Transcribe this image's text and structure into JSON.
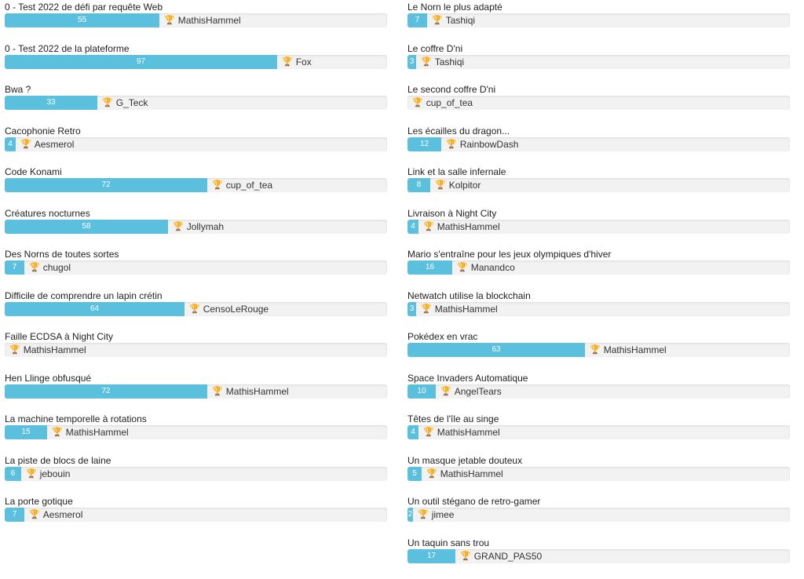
{
  "trophy_icon": "trophy-icon",
  "accent_color": "#5bc0de",
  "left_column": [
    {
      "title": "0 - Test 2022 de défi par requête Web",
      "value": 55,
      "value_label": "55",
      "winner": "MathisHammel"
    },
    {
      "title": "0 - Test 2022 de la plateforme",
      "value": 97,
      "value_label": "97",
      "winner": "Fox"
    },
    {
      "title": "Bwa ?",
      "value": 33,
      "value_label": "33",
      "winner": "G_Teck"
    },
    {
      "title": "Cacophonie Retro",
      "value": 4,
      "value_label": "4",
      "winner": "Aesmerol"
    },
    {
      "title": "Code Konami",
      "value": 72,
      "value_label": "72",
      "winner": "cup_of_tea"
    },
    {
      "title": "Créatures nocturnes",
      "value": 58,
      "value_label": "58",
      "winner": "Jollymah"
    },
    {
      "title": "Des Norns de toutes sortes",
      "value": 7,
      "value_label": "7",
      "winner": "chugol"
    },
    {
      "title": "Difficile de comprendre un lapin crétin",
      "value": 64,
      "value_label": "64",
      "winner": "CensoLeRouge"
    },
    {
      "title": "Faille ECDSA à Night City",
      "value": 0,
      "value_label": "",
      "winner": "MathisHammel"
    },
    {
      "title": "Hen Llinge obfusqué",
      "value": 72,
      "value_label": "72",
      "winner": "MathisHammel"
    },
    {
      "title": "La machine temporelle à rotations",
      "value": 15,
      "value_label": "15",
      "winner": "MathisHammel"
    },
    {
      "title": "La piste de blocs de laine",
      "value": 6,
      "value_label": "6",
      "winner": "jebouin"
    },
    {
      "title": "La porte gotique",
      "value": 7,
      "value_label": "7",
      "winner": "Aesmerol"
    }
  ],
  "right_column": [
    {
      "title": "Le Norn le plus adapté",
      "value": 7,
      "value_label": "7",
      "winner": "Tashiqi"
    },
    {
      "title": "Le coffre D'ni",
      "value": 3,
      "value_label": "3",
      "winner": "Tashiqi"
    },
    {
      "title": "Le second coffre D'ni",
      "value": 0,
      "value_label": "",
      "winner": "cup_of_tea"
    },
    {
      "title": "Les écailles du dragon...",
      "value": 12,
      "value_label": "12",
      "winner": "RainbowDash"
    },
    {
      "title": "Link et la salle infernale",
      "value": 8,
      "value_label": "8",
      "winner": "Kolpitor"
    },
    {
      "title": "Livraison à Night City",
      "value": 4,
      "value_label": "4",
      "winner": "MathisHammel"
    },
    {
      "title": "Mario s'entraîne pour les jeux olympiques d'hiver",
      "value": 16,
      "value_label": "16",
      "winner": "Manandco"
    },
    {
      "title": "Netwatch utilise la blockchain",
      "value": 3,
      "value_label": "3",
      "winner": "MathisHammel"
    },
    {
      "title": "Pokédex en vrac",
      "value": 63,
      "value_label": "63",
      "winner": "MathisHammel"
    },
    {
      "title": "Space Invaders Automatique",
      "value": 10,
      "value_label": "10",
      "winner": "AngelTears"
    },
    {
      "title": "Têtes de l'île au singe",
      "value": 4,
      "value_label": "4",
      "winner": "MathisHammel"
    },
    {
      "title": "Un masque jetable douteux",
      "value": 5,
      "value_label": "5",
      "winner": "MathisHammel"
    },
    {
      "title": "Un outil stégano de retro-gamer",
      "value": 2,
      "value_label": "2",
      "winner": "jimee"
    },
    {
      "title": "Un taquin sans trou",
      "value": 17,
      "value_label": "17",
      "winner": "GRAND_PAS50"
    }
  ]
}
